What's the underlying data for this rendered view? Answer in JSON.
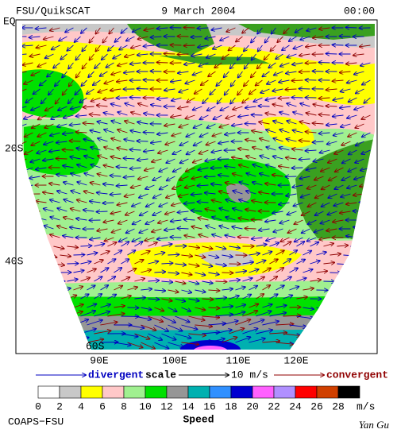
{
  "header": {
    "left": "FSU/QuikSCAT",
    "center": "9 March 2004",
    "right": "00:00"
  },
  "map": {
    "lat_labels": [
      "EQ",
      "20S",
      "40S",
      "60S"
    ],
    "lon_labels": [
      "90E",
      "100E",
      "110E",
      "120E"
    ]
  },
  "scale_legend": {
    "divergent": "divergent",
    "scale": "scale",
    "length": "10 m/s",
    "convergent": "convergent"
  },
  "colorbar": {
    "colors": [
      "#ffffff",
      "#c8c8c8",
      "#ffff00",
      "#ffc8c8",
      "#a0f090",
      "#00e000",
      "#969696",
      "#00b0b0",
      "#3090ff",
      "#0000d0",
      "#ff60ff",
      "#b090ff",
      "#ff0000",
      "#d04000",
      "#000000"
    ],
    "ticks": [
      0,
      2,
      4,
      6,
      8,
      10,
      12,
      14,
      16,
      18,
      20,
      22,
      24,
      26,
      28
    ],
    "unit": "m/s",
    "label": "Speed"
  },
  "footer": {
    "left": "COAPS−FSU",
    "right": "Yan Gu"
  }
}
